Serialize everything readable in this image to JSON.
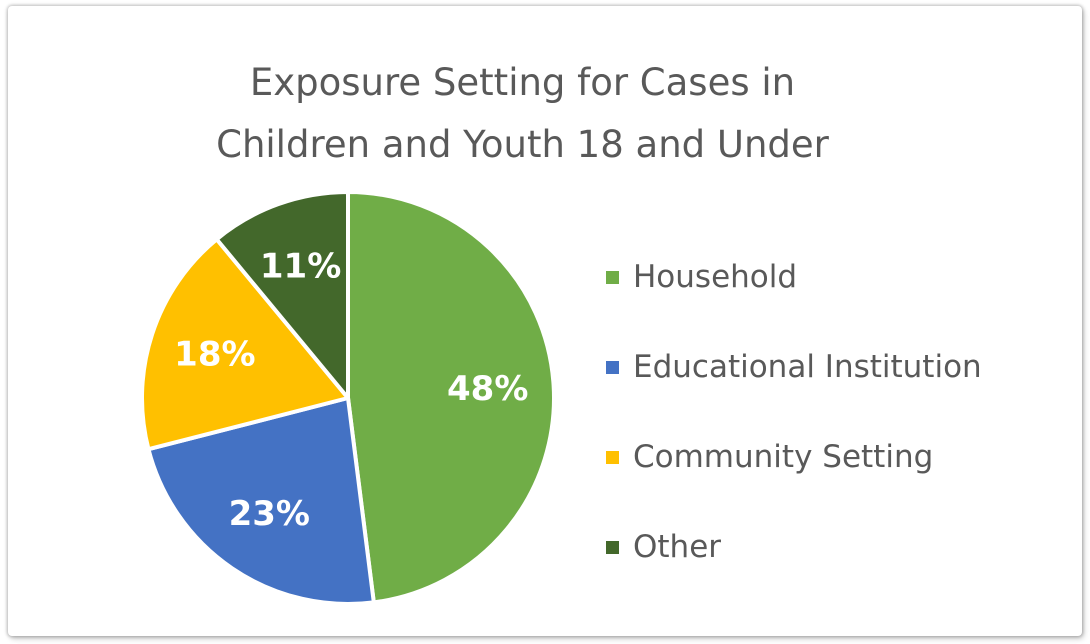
{
  "chart_data": {
    "type": "pie",
    "title": [
      "Exposure Setting for Cases in",
      "Children and Youth 18 and Under"
    ],
    "categories": [
      "Household",
      "Educational Institution",
      "Community Setting",
      "Other"
    ],
    "values": [
      48,
      23,
      18,
      11
    ],
    "labels": [
      "48%",
      "23%",
      "18%",
      "11%"
    ],
    "colors": [
      "#70ad47",
      "#4472c4",
      "#ffc000",
      "#43682b"
    ],
    "start_angle": "12 o'clock",
    "direction": "clockwise",
    "legend_position": "right"
  }
}
